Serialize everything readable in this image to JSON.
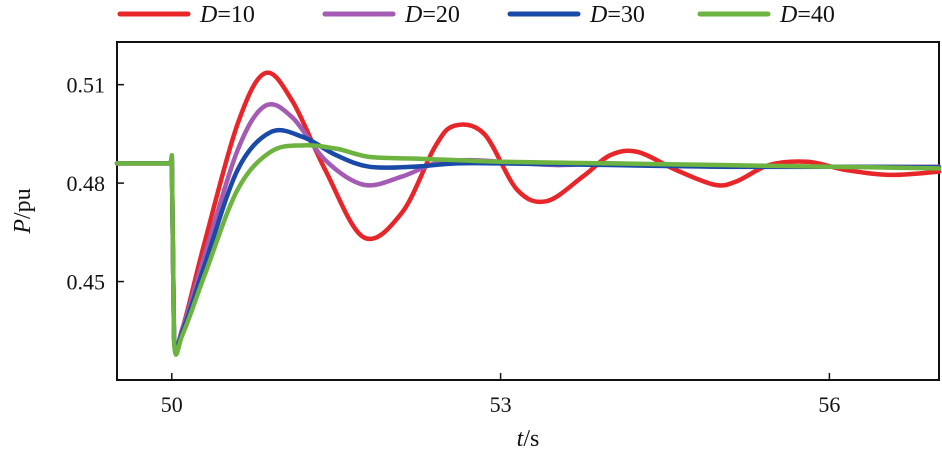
{
  "chart_data": {
    "type": "line",
    "xlabel_var": "t",
    "xlabel_unit": "/s",
    "ylabel_var": "P",
    "ylabel_unit": "/pu",
    "xlim": [
      49.5,
      57.0
    ],
    "ylim": [
      0.42,
      0.523
    ],
    "xticks": [
      50,
      53,
      56
    ],
    "yticks": [
      0.45,
      0.48,
      0.51
    ],
    "xtick_labels": [
      "50",
      "53",
      "56"
    ],
    "ytick_labels": [
      "0.45",
      "0.48",
      "0.51"
    ],
    "grid": false,
    "legend_position": "top",
    "series": [
      {
        "name": "D=10",
        "legend_var": "D",
        "legend_value": "=10",
        "color": "#e8262a",
        "x": [
          49.5,
          49.95,
          49.99,
          50.0,
          50.02,
          50.1,
          50.3,
          50.6,
          50.85,
          51.1,
          51.4,
          51.75,
          52.1,
          52.4,
          52.58,
          52.85,
          53.15,
          53.42,
          53.75,
          54.0,
          54.25,
          54.6,
          54.95,
          55.15,
          55.45,
          55.8,
          56.15,
          56.55,
          57.0
        ],
        "y": [
          0.486,
          0.486,
          0.486,
          0.488,
          0.433,
          0.436,
          0.462,
          0.498,
          0.5135,
          0.505,
          0.484,
          0.4635,
          0.471,
          0.491,
          0.4975,
          0.495,
          0.478,
          0.4745,
          0.482,
          0.4885,
          0.4895,
          0.484,
          0.4795,
          0.4805,
          0.4855,
          0.4865,
          0.484,
          0.4825,
          0.4835
        ]
      },
      {
        "name": "D=20",
        "legend_var": "D",
        "legend_value": "=20",
        "color": "#a35bb3",
        "x": [
          49.5,
          49.95,
          49.99,
          50.0,
          50.02,
          50.1,
          50.3,
          50.6,
          50.85,
          51.1,
          51.4,
          51.75,
          52.1,
          52.4,
          52.7,
          53.0,
          53.5,
          54.0,
          55.0,
          56.0,
          57.0
        ],
        "y": [
          0.486,
          0.486,
          0.486,
          0.488,
          0.433,
          0.436,
          0.458,
          0.49,
          0.5035,
          0.5,
          0.487,
          0.4795,
          0.482,
          0.486,
          0.487,
          0.4865,
          0.4855,
          0.486,
          0.485,
          0.485,
          0.485
        ]
      },
      {
        "name": "D=30",
        "legend_var": "D",
        "legend_value": "=30",
        "color": "#1a4aa8",
        "x": [
          49.5,
          49.95,
          49.99,
          50.0,
          50.02,
          50.1,
          50.3,
          50.6,
          50.9,
          51.2,
          51.5,
          51.8,
          52.2,
          52.6,
          53.0,
          54.0,
          55.0,
          56.0,
          57.0
        ],
        "y": [
          0.486,
          0.486,
          0.486,
          0.488,
          0.433,
          0.435,
          0.455,
          0.484,
          0.4955,
          0.494,
          0.4885,
          0.485,
          0.485,
          0.486,
          0.486,
          0.4855,
          0.485,
          0.485,
          0.4848
        ]
      },
      {
        "name": "D=40",
        "legend_var": "D",
        "legend_value": "=40",
        "color": "#6db33f",
        "x": [
          49.5,
          49.95,
          49.99,
          50.0,
          50.02,
          50.1,
          50.3,
          50.6,
          50.9,
          51.2,
          51.5,
          51.8,
          52.2,
          52.6,
          53.0,
          54.0,
          55.0,
          56.0,
          57.0
        ],
        "y": [
          0.486,
          0.486,
          0.486,
          0.4885,
          0.432,
          0.434,
          0.452,
          0.478,
          0.4895,
          0.4915,
          0.4905,
          0.488,
          0.4875,
          0.487,
          0.4865,
          0.486,
          0.4855,
          0.485,
          0.4845
        ]
      }
    ]
  }
}
